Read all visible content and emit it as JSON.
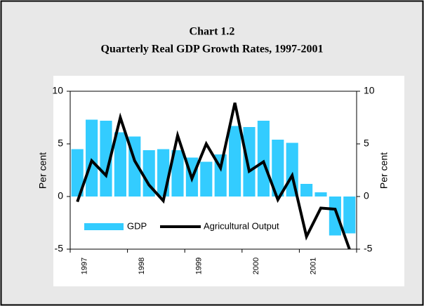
{
  "chart_data": {
    "type": "bar",
    "title": "Chart 1.2",
    "subtitle": "Quarterly Real GDP Growth Rates, 1997-2001",
    "ylabel": "Per cent",
    "y2label": "Per cent",
    "categories": [
      null,
      "1997",
      null,
      null,
      null,
      "1998",
      null,
      null,
      null,
      "1999",
      null,
      null,
      null,
      "2000",
      null,
      null,
      null,
      "2001",
      null,
      null
    ],
    "series": [
      {
        "name": "GDP",
        "type": "bar",
        "color": "#33ccff",
        "values": [
          4.5,
          7.3,
          7.2,
          6.1,
          5.7,
          4.4,
          4.5,
          4.4,
          3.7,
          3.3,
          4.0,
          6.7,
          6.6,
          7.2,
          5.4,
          5.1,
          1.2,
          0.4,
          -3.7,
          -3.5
        ]
      },
      {
        "name": "Agricultural Output",
        "type": "line",
        "color": "#000000",
        "axis": "y2",
        "values": [
          -0.5,
          3.4,
          2.0,
          7.5,
          3.4,
          1.1,
          -0.4,
          5.8,
          1.7,
          5.0,
          2.7,
          8.9,
          2.4,
          3.3,
          -0.3,
          2.0,
          -3.8,
          -1.1,
          -1.2,
          -5.0
        ]
      }
    ],
    "ylim": [
      -5,
      10
    ],
    "yticks": [
      -5,
      0,
      5,
      10
    ],
    "y2lim": [
      -5,
      10
    ],
    "y2ticks": [
      -5,
      0,
      5,
      10
    ],
    "legend": "bottom-left"
  }
}
